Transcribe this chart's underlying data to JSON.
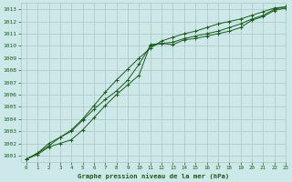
{
  "title": "Graphe pression niveau de la mer (hPa)",
  "bg_color": "#cce8e8",
  "grid_color": "#b0c4c4",
  "line_color": "#1a5c1a",
  "xlim": [
    -0.5,
    23
  ],
  "ylim": [
    1000.5,
    1013.5
  ],
  "xticks": [
    0,
    1,
    2,
    3,
    4,
    5,
    6,
    7,
    8,
    9,
    10,
    11,
    12,
    13,
    14,
    15,
    16,
    17,
    18,
    19,
    20,
    21,
    22,
    23
  ],
  "yticks": [
    1001,
    1002,
    1003,
    1004,
    1005,
    1006,
    1007,
    1008,
    1009,
    1010,
    1011,
    1012,
    1013
  ],
  "series1": [
    1000.7,
    1001.1,
    1001.7,
    1002.0,
    1002.3,
    1003.1,
    1004.1,
    1005.1,
    1006.0,
    1006.8,
    1007.6,
    1010.1,
    1010.2,
    1010.1,
    1010.5,
    1010.6,
    1010.8,
    1011.0,
    1011.2,
    1011.5,
    1012.1,
    1012.4,
    1012.9,
    1013.1
  ],
  "series2": [
    1000.7,
    1001.2,
    1001.8,
    1002.5,
    1003.0,
    1003.9,
    1004.8,
    1005.6,
    1006.3,
    1007.2,
    1008.5,
    1010.0,
    1010.2,
    1010.3,
    1010.6,
    1010.8,
    1011.0,
    1011.2,
    1011.5,
    1011.8,
    1012.2,
    1012.5,
    1013.0,
    1013.2
  ],
  "series3": [
    1000.7,
    1001.2,
    1002.0,
    1002.5,
    1003.1,
    1004.0,
    1005.1,
    1006.2,
    1007.2,
    1008.1,
    1009.0,
    1009.8,
    1010.4,
    1010.7,
    1011.0,
    1011.2,
    1011.5,
    1011.8,
    1012.0,
    1012.2,
    1012.5,
    1012.8,
    1013.1,
    1013.2
  ]
}
